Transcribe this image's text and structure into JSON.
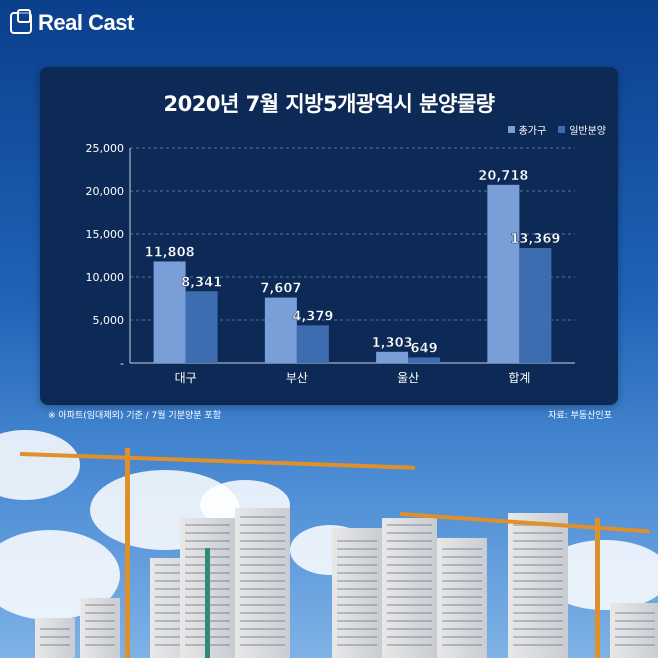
{
  "brand": {
    "name": "Real Cast"
  },
  "colors": {
    "panel": "#0d2a57",
    "series1": "#7a9fd8",
    "series2": "#3d6db0"
  },
  "chart_data": {
    "type": "bar",
    "title": "2020년 7월 지방5개광역시 분양물량",
    "categories": [
      "대구",
      "부산",
      "울산",
      "합계"
    ],
    "series": [
      {
        "name": "총가구",
        "values": [
          11808,
          7607,
          1303,
          20718
        ],
        "labels": [
          "11,808",
          "7,607",
          "1,303",
          "20,718"
        ]
      },
      {
        "name": "일반분양",
        "values": [
          8341,
          4379,
          649,
          13369
        ],
        "labels": [
          "8,341",
          "4,379",
          "649",
          "13,369"
        ]
      }
    ],
    "ylim": [
      0,
      25000
    ],
    "yticks": [
      0,
      5000,
      10000,
      15000,
      20000,
      25000
    ],
    "ytick_labels": [
      "-",
      "5,000",
      "10,000",
      "15,000",
      "20,000",
      "25,000"
    ],
    "grid": true,
    "legend_position": "top-right"
  },
  "footnote": "※ 아파트(임대제외) 기준 / 7월 기분양분 포함",
  "source": "자료: 부동산인포"
}
